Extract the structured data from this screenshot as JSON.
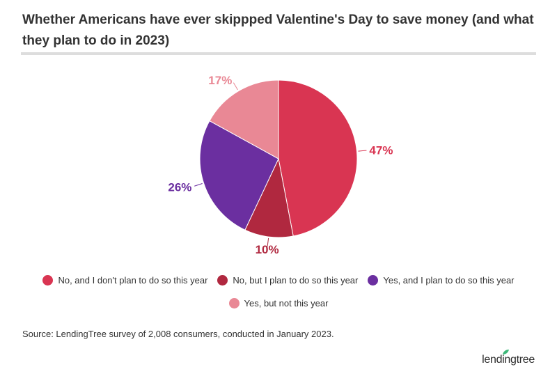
{
  "title": "Whether Americans have ever skippped Valentine's Day to save money (and what they plan to do in 2023)",
  "source": "Source: LendingTree survey of 2,008 consumers, conducted in January 2023.",
  "logo": "lendingtree",
  "chart_data": {
    "type": "pie",
    "slices": [
      {
        "label": "No, and I don't plan to do so this year",
        "value": 47,
        "display": "47%",
        "color": "#d93552"
      },
      {
        "label": "No, but I plan to do so this year",
        "value": 10,
        "display": "10%",
        "color": "#b0283f"
      },
      {
        "label": "Yes, and I plan to do so this year",
        "value": 26,
        "display": "26%",
        "color": "#6b2fa0"
      },
      {
        "label": "Yes, but not this year",
        "value": 17,
        "display": "17%",
        "color": "#e98895"
      }
    ],
    "start_angle": "12 o'clock, clockwise",
    "legend": "bottom"
  }
}
